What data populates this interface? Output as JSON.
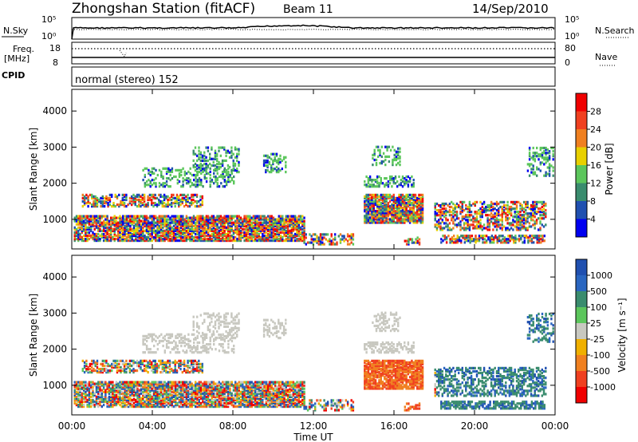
{
  "header": {
    "title": "Zhongshan Station (fitACF)",
    "beam": "Beam 11",
    "date": "14/Sep/2010"
  },
  "top_panels": {
    "nsky_label": "N.Sky",
    "nsearch_label": "N.Search",
    "freq_label": "Freq.",
    "freq_unit": "[MHz]",
    "nave_label": "Nave",
    "cpid_label": "CPID",
    "cpid_value": "normal (stereo) 152",
    "noise_left_ticks": [
      "10^5",
      "10^0"
    ],
    "noise_right_ticks": [
      "10^5",
      "10^0"
    ],
    "freq_left_ticks": [
      "18",
      "8"
    ],
    "nave_right_ticks": [
      "80",
      "0"
    ]
  },
  "chart_data": [
    {
      "type": "heatmap",
      "name_ref": "power",
      "ylabel": "Slant Range [km]",
      "xlabel": "",
      "colorbar_label": "Power [dB]",
      "ylim": [
        180,
        4600
      ],
      "y_ticks": [
        1000,
        2000,
        3000,
        4000
      ],
      "x_ticks": [
        "00:00",
        "04:00",
        "08:00",
        "12:00",
        "16:00",
        "20:00",
        "00:00"
      ],
      "colorbar_ticks": [
        "4",
        "8",
        "12",
        "16",
        "20",
        "24",
        "28"
      ],
      "colors": [
        "#0000f0",
        "#2050b0",
        "#3a8c6e",
        "#5cc65c",
        "#e8d000",
        "#f08020",
        "#f04020",
        "#f00000"
      ]
    },
    {
      "type": "heatmap",
      "name_ref": "velocity",
      "ylabel": "Slant Range [km]",
      "xlabel": "Time UT",
      "colorbar_label": "Velocity [m s⁻¹]",
      "ylim": [
        180,
        4600
      ],
      "y_ticks": [
        1000,
        2000,
        3000,
        4000
      ],
      "x_ticks": [
        "00:00",
        "04:00",
        "08:00",
        "12:00",
        "16:00",
        "20:00",
        "00:00"
      ],
      "colorbar_ticks": [
        "1000",
        "500",
        "100",
        "25",
        "-25",
        "-100",
        "-500",
        "-1000"
      ],
      "colors": [
        "#2050b0",
        "#2a66c0",
        "#3a8c6e",
        "#5cc65c",
        "#c8c8c0",
        "#f0b000",
        "#f08020",
        "#f04020",
        "#f00000"
      ]
    }
  ]
}
